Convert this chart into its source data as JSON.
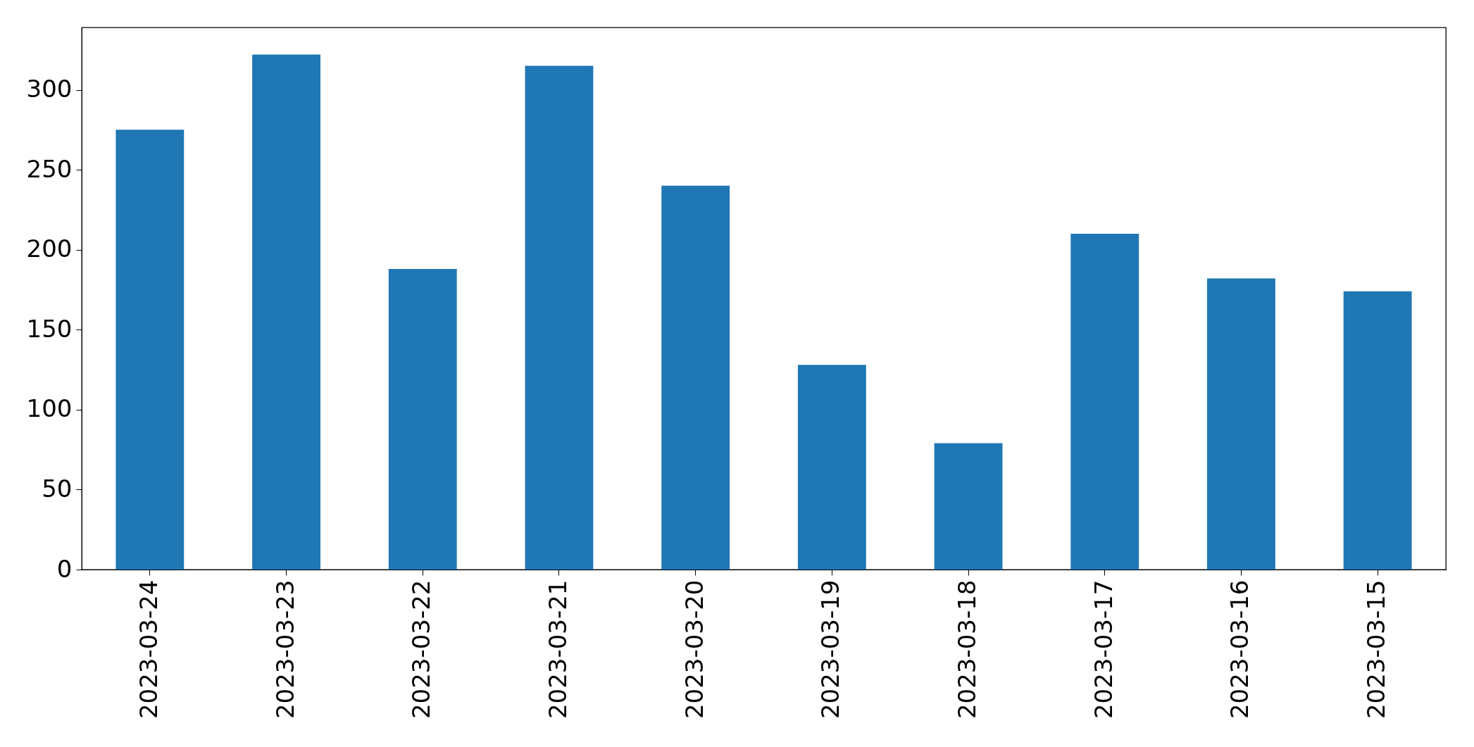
{
  "chart_data": {
    "type": "bar",
    "categories": [
      "2023-03-24",
      "2023-03-23",
      "2023-03-22",
      "2023-03-21",
      "2023-03-20",
      "2023-03-19",
      "2023-03-18",
      "2023-03-17",
      "2023-03-16",
      "2023-03-15"
    ],
    "values": [
      275,
      322,
      188,
      315,
      240,
      128,
      79,
      210,
      182,
      174
    ],
    "color": "#1f77b4",
    "ylim": [
      0,
      339
    ],
    "yticks": [
      0,
      50,
      100,
      150,
      200,
      250,
      300
    ],
    "grid": false
  }
}
